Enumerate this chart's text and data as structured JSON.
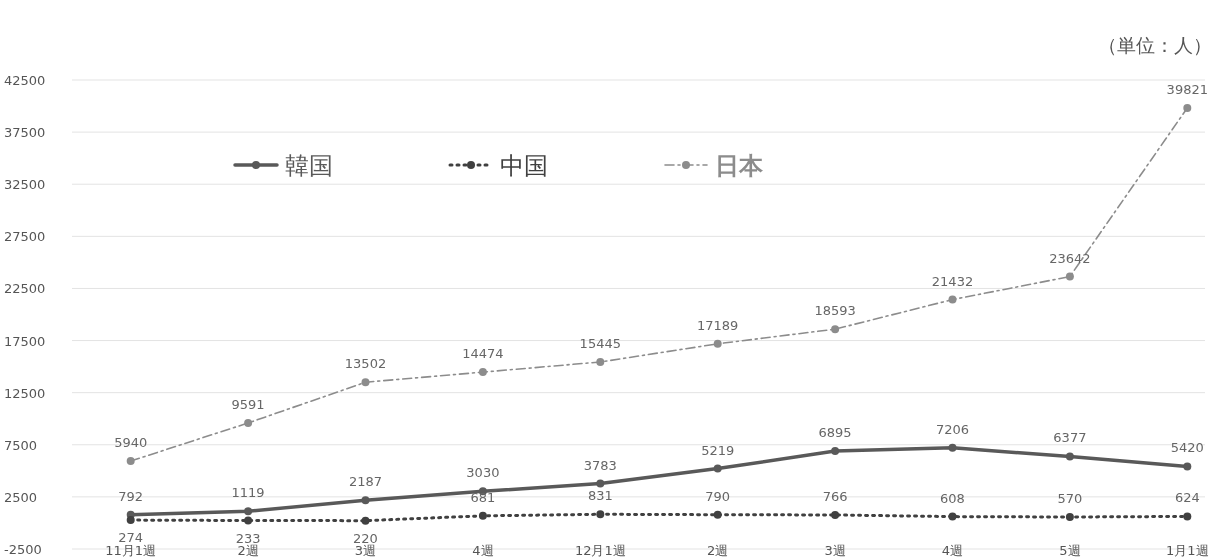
{
  "chart_data": {
    "type": "line",
    "annotations": [
      "（単位：人）"
    ],
    "categories": [
      "11月1週",
      "2週",
      "3週",
      "4週",
      "12月1週",
      "2週",
      "3週",
      "4週",
      "5週",
      "1月1週"
    ],
    "series": [
      {
        "name": "韓国",
        "color": "#595959",
        "line_style": "solid",
        "values": [
          792,
          1119,
          2187,
          3030,
          3783,
          5219,
          6895,
          7206,
          6377,
          5420
        ]
      },
      {
        "name": "中国",
        "color": "#404040",
        "line_style": "dotted",
        "values": [
          274,
          233,
          220,
          681,
          831,
          790,
          766,
          608,
          570,
          624
        ]
      },
      {
        "name": "日本",
        "color": "#8c8c8c",
        "line_style": "dashed",
        "values": [
          5940,
          9591,
          13502,
          14474,
          15445,
          17189,
          18593,
          21432,
          23642,
          39821
        ]
      }
    ],
    "ylim": [
      -2500,
      42500
    ],
    "yticks": [
      -2500,
      2500,
      7500,
      12500,
      17500,
      22500,
      27500,
      32500,
      37500,
      42500
    ],
    "grid": "y",
    "legend": "top",
    "marker": "circle",
    "data_labels": true
  }
}
